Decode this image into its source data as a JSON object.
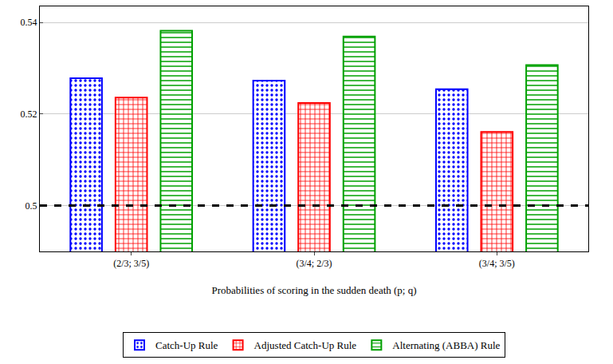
{
  "chart_data": {
    "type": "bar",
    "x_label": "Probabilities of scoring in the sudden death (p; q)",
    "categories": [
      "(2/3; 3/5)",
      "(3/4; 2/3)",
      "(3/4; 3/5)"
    ],
    "series": [
      {
        "name": "Catch-Up Rule",
        "color": "#0000ff",
        "marker": "dots",
        "values": [
          0.5278,
          0.5273,
          0.5254
        ]
      },
      {
        "name": "Adjusted Catch-Up Rule",
        "color": "#ff0000",
        "marker": "grid",
        "values": [
          0.5236,
          0.5224,
          0.5161
        ]
      },
      {
        "name": "Alternating (ABBA) Rule",
        "color": "#00a000",
        "marker": "horizontal lines",
        "values": [
          0.5382,
          0.5369,
          0.5307
        ]
      }
    ],
    "reference_line": 0.5,
    "ylim": [
      0.49,
      0.5435
    ],
    "yticks": [
      0.5,
      0.52,
      0.54
    ],
    "grid": true,
    "legend": "bottom"
  }
}
